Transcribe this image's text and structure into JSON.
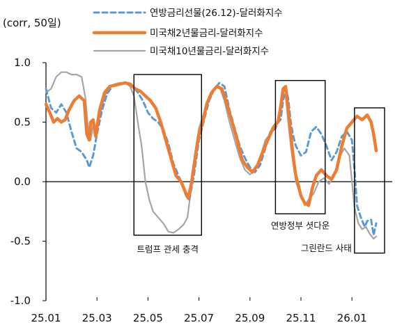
{
  "chart_data": {
    "type": "line",
    "title": "",
    "unit_label": "(corr, 50일)",
    "ylim": [
      -1.0,
      1.0
    ],
    "yticks": [
      "1.0",
      "0.5",
      "0.0",
      "-0.5",
      "-1.0"
    ],
    "ytick_values": [
      1.0,
      0.5,
      0.0,
      -0.5,
      -1.0
    ],
    "xlim": [
      0,
      13
    ],
    "xticks": [
      "25.01",
      "25.03",
      "25.05",
      "25.07",
      "25.09",
      "25.11",
      "26.01"
    ],
    "xtick_values": [
      0,
      2,
      4,
      6,
      8,
      10,
      12
    ],
    "grid": false,
    "legend_position": "top-center",
    "series": [
      {
        "name": "연방금리선물(26.12)-달러화지수",
        "color": "#5b9bd5",
        "style": "dashed",
        "points": [
          [
            0.0,
            0.78
          ],
          [
            0.2,
            0.62
          ],
          [
            0.4,
            0.58
          ],
          [
            0.6,
            0.65
          ],
          [
            0.8,
            0.58
          ],
          [
            1.0,
            0.42
          ],
          [
            1.2,
            0.28
          ],
          [
            1.4,
            0.25
          ],
          [
            1.6,
            0.18
          ],
          [
            1.7,
            0.12
          ],
          [
            1.85,
            0.22
          ],
          [
            2.0,
            0.4
          ],
          [
            2.2,
            0.6
          ],
          [
            2.4,
            0.74
          ],
          [
            2.6,
            0.8
          ],
          [
            2.8,
            0.82
          ],
          [
            3.0,
            0.82
          ],
          [
            3.2,
            0.83
          ],
          [
            3.4,
            0.8
          ],
          [
            3.6,
            0.75
          ],
          [
            3.8,
            0.68
          ],
          [
            4.0,
            0.58
          ],
          [
            4.2,
            0.53
          ],
          [
            4.4,
            0.5
          ],
          [
            4.6,
            0.44
          ],
          [
            4.8,
            0.32
          ],
          [
            5.0,
            0.15
          ],
          [
            5.2,
            0.05
          ],
          [
            5.35,
            -0.03
          ],
          [
            5.5,
            -0.12
          ],
          [
            5.62,
            -0.15
          ],
          [
            5.8,
            0.05
          ],
          [
            6.0,
            0.35
          ],
          [
            6.2,
            0.52
          ],
          [
            6.4,
            0.68
          ],
          [
            6.6,
            0.78
          ],
          [
            6.8,
            0.83
          ],
          [
            7.0,
            0.8
          ],
          [
            7.2,
            0.6
          ],
          [
            7.4,
            0.45
          ],
          [
            7.6,
            0.3
          ],
          [
            7.8,
            0.2
          ],
          [
            8.0,
            0.12
          ],
          [
            8.2,
            0.08
          ],
          [
            8.4,
            0.14
          ],
          [
            8.6,
            0.28
          ],
          [
            8.8,
            0.42
          ],
          [
            9.0,
            0.45
          ],
          [
            9.1,
            0.5
          ],
          [
            9.2,
            0.52
          ],
          [
            9.3,
            0.68
          ],
          [
            9.4,
            0.78
          ],
          [
            9.5,
            0.7
          ],
          [
            9.6,
            0.5
          ],
          [
            9.7,
            0.38
          ],
          [
            9.8,
            0.3
          ],
          [
            10.0,
            0.22
          ],
          [
            10.2,
            0.25
          ],
          [
            10.4,
            0.42
          ],
          [
            10.6,
            0.46
          ],
          [
            10.8,
            0.4
          ],
          [
            11.0,
            0.3
          ],
          [
            11.2,
            0.18
          ],
          [
            11.4,
            0.25
          ],
          [
            11.6,
            0.38
          ],
          [
            11.8,
            0.42
          ],
          [
            12.0,
            0.35
          ],
          [
            12.1,
            0.1
          ],
          [
            12.2,
            -0.2
          ],
          [
            12.35,
            -0.3
          ],
          [
            12.5,
            -0.38
          ],
          [
            12.6,
            -0.33
          ],
          [
            12.75,
            -0.32
          ],
          [
            12.85,
            -0.45
          ],
          [
            12.95,
            -0.35
          ]
        ]
      },
      {
        "name": "미국채2년물금리-달러화지수",
        "color": "#ed7d31",
        "style": "solid",
        "points": [
          [
            0.0,
            0.65
          ],
          [
            0.15,
            0.58
          ],
          [
            0.3,
            0.5
          ],
          [
            0.45,
            0.53
          ],
          [
            0.6,
            0.5
          ],
          [
            0.75,
            0.52
          ],
          [
            0.9,
            0.6
          ],
          [
            1.1,
            0.68
          ],
          [
            1.3,
            0.72
          ],
          [
            1.5,
            0.68
          ],
          [
            1.6,
            0.4
          ],
          [
            1.7,
            0.35
          ],
          [
            1.75,
            0.5
          ],
          [
            1.85,
            0.52
          ],
          [
            1.95,
            0.38
          ],
          [
            2.1,
            0.6
          ],
          [
            2.3,
            0.75
          ],
          [
            2.5,
            0.8
          ],
          [
            2.7,
            0.81
          ],
          [
            2.9,
            0.82
          ],
          [
            3.1,
            0.83
          ],
          [
            3.3,
            0.82
          ],
          [
            3.5,
            0.78
          ],
          [
            3.7,
            0.76
          ],
          [
            3.9,
            0.72
          ],
          [
            4.1,
            0.68
          ],
          [
            4.3,
            0.62
          ],
          [
            4.5,
            0.5
          ],
          [
            4.7,
            0.35
          ],
          [
            4.9,
            0.2
          ],
          [
            5.1,
            0.05
          ],
          [
            5.3,
            0.0
          ],
          [
            5.45,
            -0.08
          ],
          [
            5.58,
            -0.14
          ],
          [
            5.7,
            -0.02
          ],
          [
            5.85,
            0.2
          ],
          [
            6.0,
            0.4
          ],
          [
            6.15,
            0.5
          ],
          [
            6.3,
            0.65
          ],
          [
            6.5,
            0.75
          ],
          [
            6.7,
            0.8
          ],
          [
            6.9,
            0.78
          ],
          [
            7.1,
            0.65
          ],
          [
            7.3,
            0.5
          ],
          [
            7.5,
            0.35
          ],
          [
            7.7,
            0.18
          ],
          [
            7.9,
            0.12
          ],
          [
            8.1,
            0.08
          ],
          [
            8.3,
            0.14
          ],
          [
            8.5,
            0.25
          ],
          [
            8.7,
            0.35
          ],
          [
            8.9,
            0.45
          ],
          [
            9.0,
            0.48
          ],
          [
            9.1,
            0.5
          ],
          [
            9.2,
            0.62
          ],
          [
            9.3,
            0.78
          ],
          [
            9.4,
            0.8
          ],
          [
            9.5,
            0.6
          ],
          [
            9.6,
            0.4
          ],
          [
            9.7,
            0.2
          ],
          [
            9.8,
            0.05
          ],
          [
            10.0,
            -0.12
          ],
          [
            10.15,
            -0.18
          ],
          [
            10.3,
            -0.2
          ],
          [
            10.45,
            -0.05
          ],
          [
            10.6,
            0.05
          ],
          [
            10.8,
            0.1
          ],
          [
            11.0,
            0.05
          ],
          [
            11.2,
            0.02
          ],
          [
            11.4,
            0.1
          ],
          [
            11.6,
            0.3
          ],
          [
            11.8,
            0.45
          ],
          [
            12.0,
            0.5
          ],
          [
            12.2,
            0.55
          ],
          [
            12.4,
            0.52
          ],
          [
            12.6,
            0.56
          ],
          [
            12.75,
            0.5
          ],
          [
            12.85,
            0.4
          ],
          [
            12.95,
            0.26
          ]
        ]
      },
      {
        "name": "미국채10년물금리-달러화지수",
        "color": "#a5a5a5",
        "style": "solid",
        "points": [
          [
            0.0,
            0.75
          ],
          [
            0.2,
            0.78
          ],
          [
            0.4,
            0.88
          ],
          [
            0.6,
            0.92
          ],
          [
            0.8,
            0.92
          ],
          [
            1.0,
            0.9
          ],
          [
            1.2,
            0.9
          ],
          [
            1.4,
            0.88
          ],
          [
            1.55,
            0.7
          ],
          [
            1.65,
            0.45
          ],
          [
            1.75,
            0.35
          ],
          [
            1.85,
            0.48
          ],
          [
            1.95,
            0.4
          ],
          [
            2.1,
            0.55
          ],
          [
            2.3,
            0.72
          ],
          [
            2.5,
            0.8
          ],
          [
            2.7,
            0.82
          ],
          [
            2.9,
            0.83
          ],
          [
            3.1,
            0.83
          ],
          [
            3.3,
            0.8
          ],
          [
            3.45,
            0.72
          ],
          [
            3.6,
            0.5
          ],
          [
            3.75,
            0.3
          ],
          [
            3.9,
            0.0
          ],
          [
            4.05,
            -0.15
          ],
          [
            4.2,
            -0.25
          ],
          [
            4.4,
            -0.3
          ],
          [
            4.6,
            -0.35
          ],
          [
            4.8,
            -0.42
          ],
          [
            5.0,
            -0.43
          ],
          [
            5.2,
            -0.4
          ],
          [
            5.4,
            -0.36
          ],
          [
            5.55,
            -0.3
          ],
          [
            5.7,
            -0.05
          ],
          [
            5.85,
            0.25
          ],
          [
            6.0,
            0.45
          ],
          [
            6.2,
            0.58
          ],
          [
            6.4,
            0.72
          ],
          [
            6.6,
            0.78
          ],
          [
            6.8,
            0.8
          ],
          [
            7.0,
            0.68
          ],
          [
            7.2,
            0.5
          ],
          [
            7.4,
            0.35
          ],
          [
            7.6,
            0.2
          ],
          [
            7.8,
            0.1
          ],
          [
            8.0,
            0.06
          ],
          [
            8.2,
            0.1
          ],
          [
            8.4,
            0.2
          ],
          [
            8.6,
            0.35
          ],
          [
            8.8,
            0.4
          ],
          [
            9.0,
            0.45
          ],
          [
            9.15,
            0.55
          ],
          [
            9.3,
            0.7
          ],
          [
            9.4,
            0.72
          ],
          [
            9.5,
            0.5
          ],
          [
            9.6,
            0.3
          ],
          [
            9.7,
            0.15
          ],
          [
            9.8,
            0.0
          ],
          [
            10.0,
            -0.12
          ],
          [
            10.15,
            -0.2
          ],
          [
            10.3,
            -0.15
          ],
          [
            10.5,
            -0.1
          ],
          [
            10.7,
            0.0
          ],
          [
            10.9,
            0.03
          ],
          [
            11.1,
            -0.02
          ],
          [
            11.3,
            0.05
          ],
          [
            11.5,
            0.2
          ],
          [
            11.7,
            0.28
          ],
          [
            11.9,
            0.22
          ],
          [
            12.0,
            0.0
          ],
          [
            12.1,
            -0.22
          ],
          [
            12.25,
            -0.35
          ],
          [
            12.4,
            -0.4
          ],
          [
            12.55,
            -0.38
          ],
          [
            12.7,
            -0.44
          ],
          [
            12.85,
            -0.48
          ],
          [
            12.95,
            -0.46
          ]
        ]
      }
    ],
    "annotations": [
      {
        "label": "트럼프 관세 충격",
        "x_range": [
          3.45,
          6.1
        ],
        "y_range": [
          -0.45,
          0.9
        ],
        "label_y": -0.57
      },
      {
        "label": "연방정부 셧다운",
        "x_range": [
          9.0,
          10.95
        ],
        "y_range": [
          -0.27,
          0.85
        ],
        "label_y": -0.37
      },
      {
        "label": "그린란드 사태",
        "x_range": [
          12.1,
          13.28
        ],
        "y_range": [
          -0.6,
          0.62
        ],
        "label_y": -0.56
      }
    ]
  }
}
